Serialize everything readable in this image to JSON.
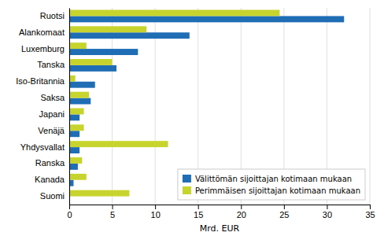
{
  "chart_data": {
    "type": "bar",
    "orientation": "horizontal",
    "categories": [
      "Ruotsi",
      "Alankomaat",
      "Luxemburg",
      "Tanska",
      "Iso-Britannia",
      "Saksa",
      "Japani",
      "Venäjä",
      "Yhdysvallat",
      "Ranska",
      "Kanada",
      "Suomi"
    ],
    "series": [
      {
        "name": "Välittömän sijoittajan kotimaan mukaan",
        "color": "#1f6eb5",
        "values": [
          32.0,
          14.0,
          8.0,
          5.5,
          3.0,
          2.5,
          1.2,
          1.2,
          1.2,
          1.0,
          0.5,
          0.0
        ]
      },
      {
        "name": "Perimmäisen sijoittajan kotimaan mukaan",
        "color": "#c8d42e",
        "values": [
          24.5,
          9.0,
          2.0,
          5.0,
          0.7,
          2.3,
          1.7,
          1.7,
          11.5,
          1.5,
          2.0,
          7.0
        ]
      }
    ],
    "xlabel": "Mrd. EUR",
    "xlim": [
      0,
      35
    ],
    "xticks": [
      0,
      5,
      10,
      15,
      20,
      25,
      30,
      35
    ],
    "grid": true,
    "legend": "lower right"
  }
}
